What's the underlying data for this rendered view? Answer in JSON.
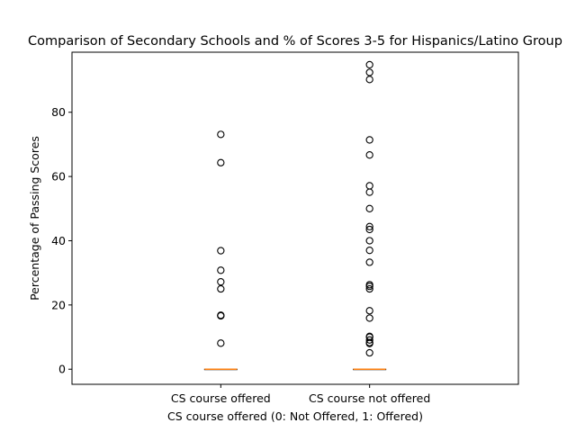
{
  "chart_data": {
    "type": "boxplot",
    "title": "Comparison of Secondary Schools and % of Scores 3-5 for Hispanics/Latino Group",
    "xlabel": "CS course offered (0: Not Offered, 1: Offered)",
    "ylabel": "Percentage of Passing Scores",
    "categories": [
      "CS course offered",
      "CS course not offered"
    ],
    "ylim": [
      -4.7,
      98.7
    ],
    "yticks": [
      0,
      20,
      40,
      60,
      80
    ],
    "grid": false,
    "series": [
      {
        "box": {
          "min": 0,
          "q1": 0,
          "median": 0,
          "q3": 0,
          "max": 0
        },
        "outliers": [
          73.1,
          64.3,
          36.9,
          30.8,
          27.2,
          25.0,
          16.8,
          16.6,
          8.1
        ]
      },
      {
        "box": {
          "min": 0,
          "q1": 0,
          "median": 0,
          "q3": 0,
          "max": 0
        },
        "outliers": [
          94.8,
          92.4,
          90.2,
          71.4,
          66.7,
          57.1,
          55.1,
          50.0,
          44.4,
          43.5,
          40.0,
          37.0,
          33.3,
          26.3,
          25.8,
          25.0,
          18.2,
          15.9,
          10.2,
          10.0,
          9.1,
          8.3,
          8.0,
          5.1
        ]
      }
    ],
    "colors": {
      "median": "#ff7f0e",
      "box": "#000000",
      "flier_edge": "#000000"
    }
  }
}
